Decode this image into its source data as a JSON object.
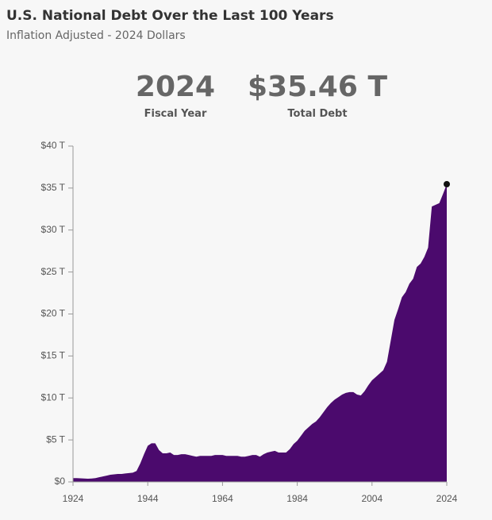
{
  "header": {
    "title": "U.S. National Debt Over the Last 100 Years",
    "subtitle": "Inflation Adjusted - 2024 Dollars"
  },
  "highlight": {
    "year": "2024",
    "year_label": "Fiscal Year",
    "debt": "$35.46 T",
    "debt_label": "Total Debt"
  },
  "chart_data": {
    "type": "area",
    "color": "#4b0a6d",
    "marker_color": "#111111",
    "x": [
      1924,
      1925,
      1926,
      1927,
      1928,
      1929,
      1930,
      1931,
      1932,
      1933,
      1934,
      1935,
      1936,
      1937,
      1938,
      1939,
      1940,
      1941,
      1942,
      1943,
      1944,
      1945,
      1946,
      1947,
      1948,
      1949,
      1950,
      1951,
      1952,
      1953,
      1954,
      1955,
      1956,
      1957,
      1958,
      1959,
      1960,
      1961,
      1962,
      1963,
      1964,
      1965,
      1966,
      1967,
      1968,
      1969,
      1970,
      1971,
      1972,
      1973,
      1974,
      1975,
      1976,
      1977,
      1978,
      1979,
      1980,
      1981,
      1982,
      1983,
      1984,
      1985,
      1986,
      1987,
      1988,
      1989,
      1990,
      1991,
      1992,
      1993,
      1994,
      1995,
      1996,
      1997,
      1998,
      1999,
      2000,
      2001,
      2002,
      2003,
      2004,
      2005,
      2006,
      2007,
      2008,
      2009,
      2010,
      2011,
      2012,
      2013,
      2014,
      2015,
      2016,
      2017,
      2018,
      2019,
      2020,
      2021,
      2022,
      2023,
      2024
    ],
    "values": [
      0.45,
      0.45,
      0.43,
      0.4,
      0.38,
      0.4,
      0.45,
      0.55,
      0.65,
      0.75,
      0.85,
      0.9,
      0.95,
      0.95,
      1.0,
      1.05,
      1.1,
      1.3,
      2.2,
      3.3,
      4.3,
      4.6,
      4.6,
      3.8,
      3.4,
      3.4,
      3.5,
      3.2,
      3.2,
      3.3,
      3.3,
      3.2,
      3.1,
      3.0,
      3.1,
      3.1,
      3.1,
      3.1,
      3.2,
      3.2,
      3.2,
      3.1,
      3.1,
      3.1,
      3.1,
      3.0,
      3.0,
      3.1,
      3.2,
      3.2,
      3.0,
      3.3,
      3.5,
      3.6,
      3.7,
      3.5,
      3.5,
      3.5,
      3.9,
      4.5,
      4.9,
      5.5,
      6.1,
      6.5,
      6.9,
      7.2,
      7.7,
      8.3,
      8.9,
      9.4,
      9.8,
      10.1,
      10.4,
      10.6,
      10.7,
      10.7,
      10.4,
      10.3,
      10.8,
      11.5,
      12.1,
      12.5,
      12.9,
      13.3,
      14.3,
      16.8,
      19.3,
      20.6,
      22.0,
      22.6,
      23.6,
      24.2,
      25.6,
      26.0,
      26.8,
      27.9,
      32.8,
      33.0,
      33.2,
      34.3,
      35.46
    ],
    "xlim": [
      1924,
      2024
    ],
    "xticks": [
      1924,
      1944,
      1964,
      1984,
      2004,
      2024
    ],
    "ylim": [
      0,
      40
    ],
    "yticks": [
      {
        "value": 0,
        "label": "$0"
      },
      {
        "value": 5,
        "label": "$5 T"
      },
      {
        "value": 10,
        "label": "$10 T"
      },
      {
        "value": 15,
        "label": "$15 T"
      },
      {
        "value": 20,
        "label": "$20 T"
      },
      {
        "value": 25,
        "label": "$25 T"
      },
      {
        "value": 30,
        "label": "$30 T"
      },
      {
        "value": 35,
        "label": "$35 T"
      },
      {
        "value": 40,
        "label": "$40 T"
      }
    ]
  }
}
